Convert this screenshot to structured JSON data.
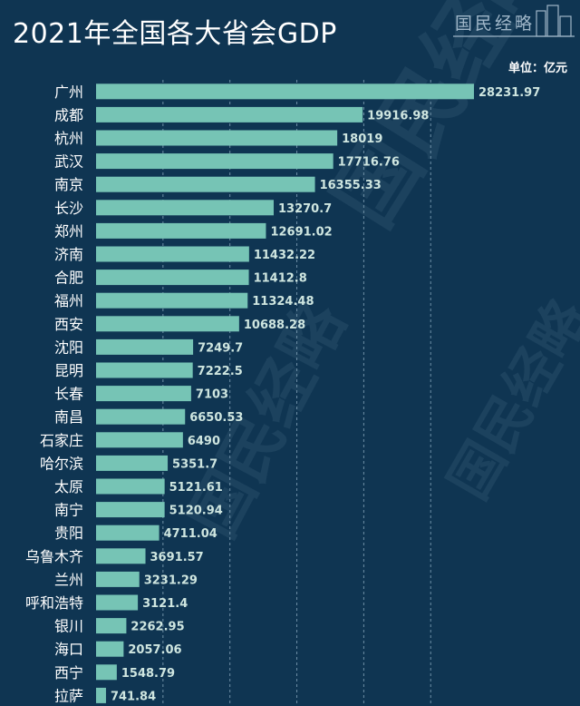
{
  "header": {
    "title": "2021年全国各大省会GDP",
    "logo_text": "国民经略",
    "unit": "单位：亿元"
  },
  "watermark": {
    "text": "国民经略"
  },
  "colors": {
    "background": "#0f3552",
    "bar": "#76c4b5",
    "bar_label": "#cfe6e0",
    "category_label": "#ffffff",
    "grid": "#6f8fa6"
  },
  "chart_data": {
    "type": "bar",
    "orientation": "horizontal",
    "title": "2021年全国各大省会GDP",
    "unit": "单位：亿元",
    "xlim": [
      0,
      30000
    ],
    "grid": "vertical dashed lines every 5000",
    "categories": [
      "广州",
      "成都",
      "杭州",
      "武汉",
      "南京",
      "长沙",
      "郑州",
      "济南",
      "合肥",
      "福州",
      "西安",
      "沈阳",
      "昆明",
      "长春",
      "南昌",
      "石家庄",
      "哈尔滨",
      "太原",
      "南宁",
      "贵阳",
      "乌鲁木齐",
      "兰州",
      "呼和浩特",
      "银川",
      "海口",
      "西宁",
      "拉萨"
    ],
    "values": [
      28231.97,
      19916.98,
      18019,
      17716.76,
      16355.33,
      13270.7,
      12691.02,
      11432.22,
      11412.8,
      11324.48,
      10688.28,
      7249.7,
      7222.5,
      7103,
      6650.53,
      6490,
      5351.7,
      5121.61,
      5120.94,
      4711.04,
      3691.57,
      3231.29,
      3121.4,
      2262.95,
      2057.06,
      1548.79,
      741.84
    ],
    "labels": [
      "28231.97",
      "19916.98",
      "18019",
      "17716.76",
      "16355.33",
      "13270.7",
      "12691.02",
      "11432.22",
      "11412.8",
      "11324.48",
      "10688.28",
      "7249.7",
      "7222.5",
      "7103",
      "6650.53",
      "6490",
      "5351.7",
      "5121.61",
      "5120.94",
      "4711.04",
      "3691.57",
      "3231.29",
      "3121.4",
      "2262.95",
      "2057.06",
      "1548.79",
      "741.84"
    ]
  }
}
